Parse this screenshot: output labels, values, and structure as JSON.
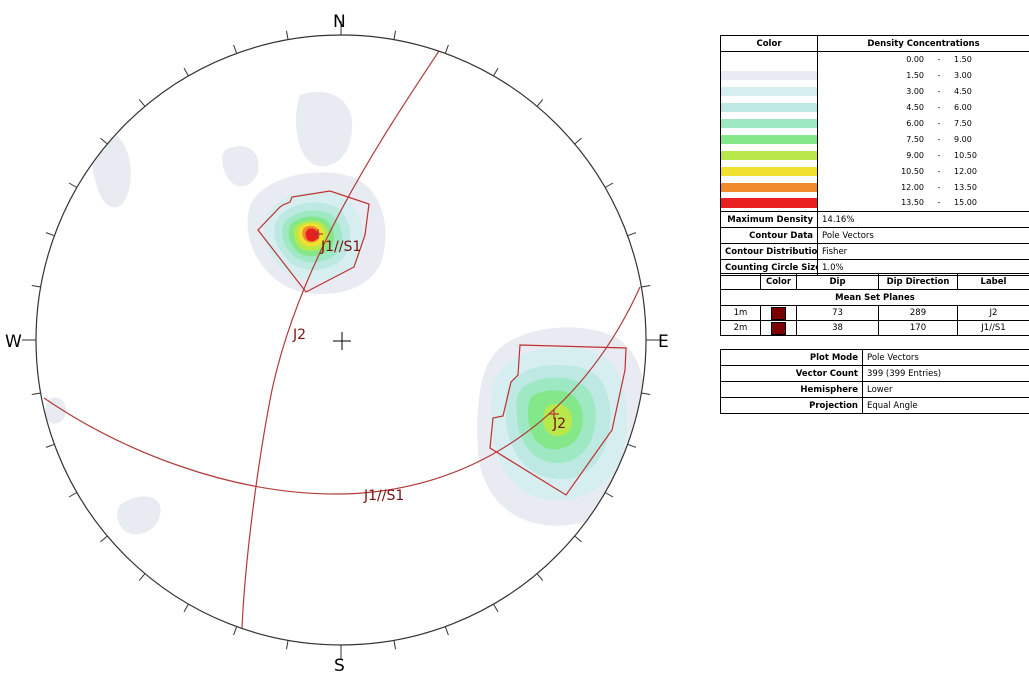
{
  "compass": {
    "north": "N",
    "south": "S",
    "east": "E",
    "west": "W"
  },
  "planes": [
    {
      "id": "1m",
      "label_on_plot": "J2",
      "color": "#b23a3a"
    },
    {
      "id": "2m",
      "label_on_plot": "J1//S1",
      "color": "#b23a3a"
    }
  ],
  "pole_labels": {
    "set1": "J1//S1",
    "set2": "J2"
  },
  "density_table": {
    "header_color": "Color",
    "header_density": "Density Concentrations",
    "rows": [
      {
        "from": "0.00",
        "to": "1.50",
        "color": "#ffffff"
      },
      {
        "from": "1.50",
        "to": "3.00",
        "color": "#e8ecf2"
      },
      {
        "from": "3.00",
        "to": "4.50",
        "color": "#d6eef0"
      },
      {
        "from": "4.50",
        "to": "6.00",
        "color": "#bde9e2"
      },
      {
        "from": "6.00",
        "to": "7.50",
        "color": "#9ee8c4"
      },
      {
        "from": "7.50",
        "to": "9.00",
        "color": "#84e88a"
      },
      {
        "from": "9.00",
        "to": "10.50",
        "color": "#b8e84a"
      },
      {
        "from": "10.50",
        "to": "12.00",
        "color": "#f0e030"
      },
      {
        "from": "12.00",
        "to": "13.50",
        "color": "#f08a2a"
      },
      {
        "from": "13.50",
        "to": "15.00",
        "color": "#e82020"
      }
    ],
    "dash": "-",
    "props": [
      {
        "label": "Maximum Density",
        "value": "14.16%"
      },
      {
        "label": "Contour Data",
        "value": "Pole Vectors"
      },
      {
        "label": "Contour Distribution",
        "value": "Fisher"
      },
      {
        "label": "Counting Circle Size",
        "value": "1.0%"
      }
    ]
  },
  "sets_table": {
    "headers": [
      "",
      "Color",
      "Dip",
      "Dip Direction",
      "Label"
    ],
    "section": "Mean Set Planes",
    "rows": [
      {
        "id": "1m",
        "color": "#7a0000",
        "dip": "73",
        "dip_direction": "289",
        "label": "J2"
      },
      {
        "id": "2m",
        "color": "#7a0000",
        "dip": "38",
        "dip_direction": "170",
        "label": "J1//S1"
      }
    ]
  },
  "info_table": [
    {
      "label": "Plot Mode",
      "value": "Pole Vectors"
    },
    {
      "label": "Vector Count",
      "value": "399 (399 Entries)"
    },
    {
      "label": "Hemisphere",
      "value": "Lower"
    },
    {
      "label": "Projection",
      "value": "Equal Angle"
    }
  ]
}
